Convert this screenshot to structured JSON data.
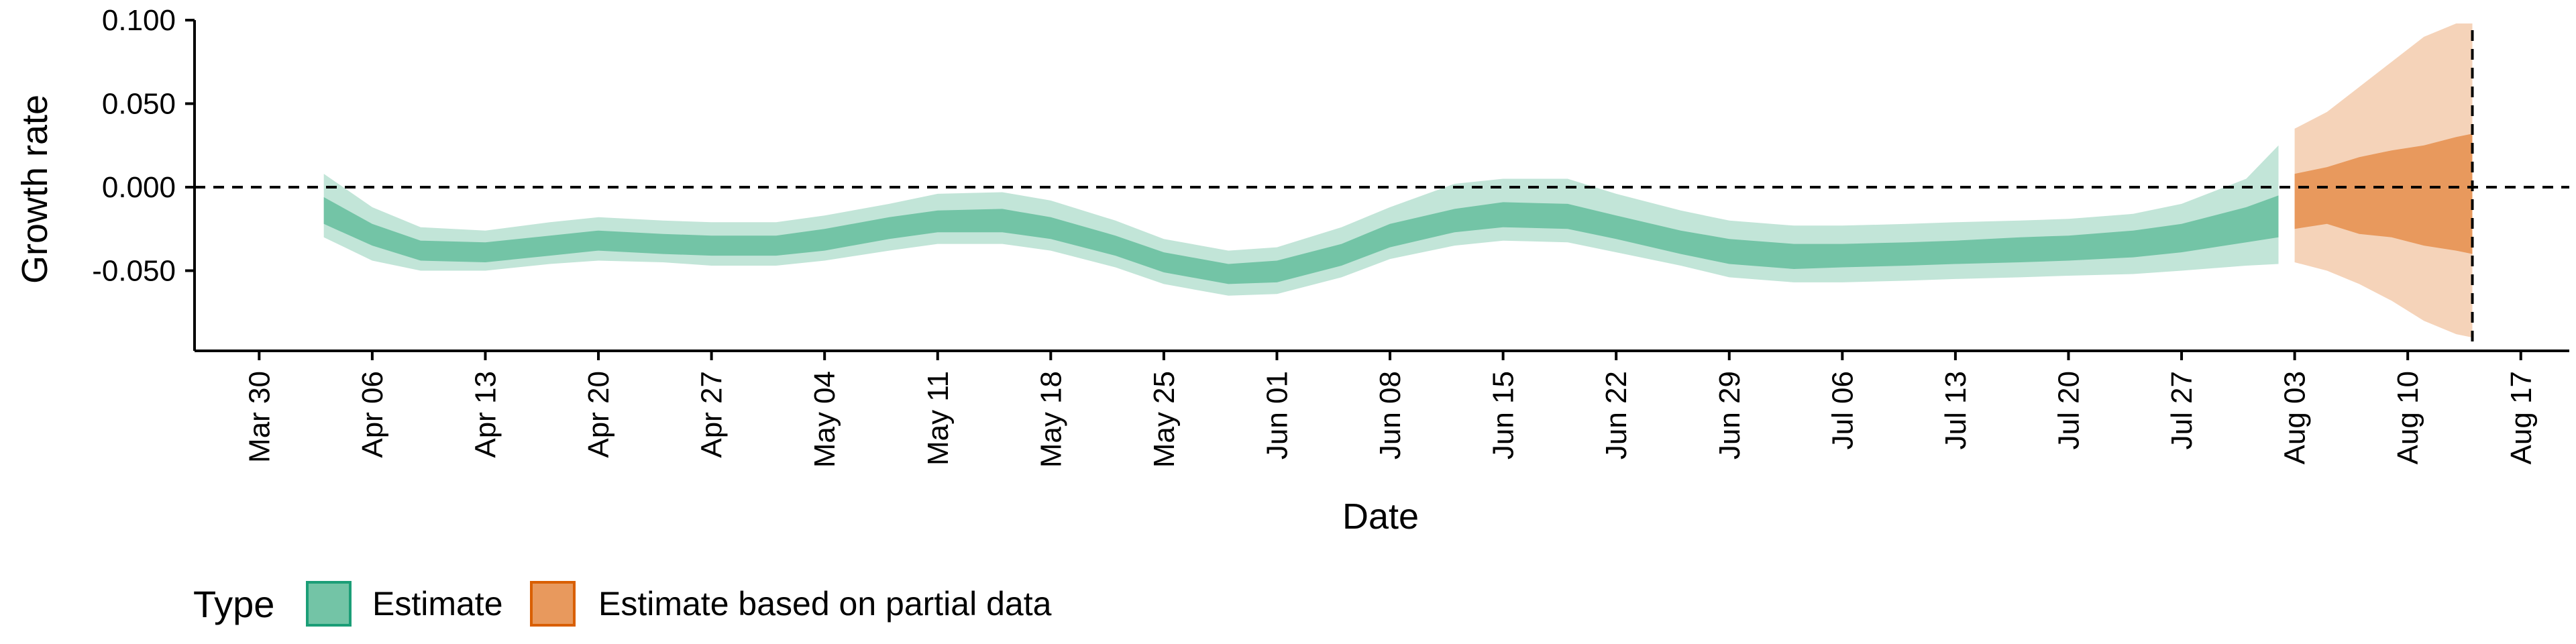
{
  "chart_data": {
    "type": "area",
    "xlabel": "Date",
    "ylabel": "Growth rate",
    "x_tick_labels": [
      "Mar 30",
      "Apr 06",
      "Apr 13",
      "Apr 20",
      "Apr 27",
      "May 04",
      "May 11",
      "May 18",
      "May 25",
      "Jun 01",
      "Jun 08",
      "Jun 15",
      "Jun 22",
      "Jun 29",
      "Jul 06",
      "Jul 13",
      "Jul 20",
      "Jul 27",
      "Aug 03",
      "Aug 10",
      "Aug 17"
    ],
    "x_ticks": [
      "2020-03-30",
      "2020-04-06",
      "2020-04-13",
      "2020-04-20",
      "2020-04-27",
      "2020-05-04",
      "2020-05-11",
      "2020-05-18",
      "2020-05-25",
      "2020-06-01",
      "2020-06-08",
      "2020-06-15",
      "2020-06-22",
      "2020-06-29",
      "2020-07-06",
      "2020-07-13",
      "2020-07-20",
      "2020-07-27",
      "2020-08-03",
      "2020-08-10",
      "2020-08-17"
    ],
    "xlim": [
      "2020-03-26",
      "2020-08-20"
    ],
    "ylim": [
      -0.098,
      0.1
    ],
    "y_ticks": [
      0.1,
      0.05,
      0.0,
      -0.05
    ],
    "y_tick_labels": [
      "0.100",
      "0.050",
      "0.000",
      "-0.050"
    ],
    "hline_y": 0,
    "vline_date": "2020-08-14",
    "legend": {
      "title": "Type",
      "position": "bottom-left",
      "entries": [
        {
          "label": "Estimate",
          "fill": "#73c4a6",
          "border": "#1b9e77"
        },
        {
          "label": "Estimate based on partial data",
          "fill": "#e8995d",
          "border": "#d95f02"
        }
      ]
    },
    "series": [
      {
        "name": "Estimate",
        "color_outer": "#c2e5d8",
        "color_inner": "#73c4a6",
        "points": [
          {
            "date": "2020-04-03",
            "lo90": -0.03,
            "lo50": -0.022,
            "hi50": -0.006,
            "hi90": 0.008
          },
          {
            "date": "2020-04-06",
            "lo90": -0.044,
            "lo50": -0.035,
            "hi50": -0.022,
            "hi90": -0.012
          },
          {
            "date": "2020-04-09",
            "lo90": -0.05,
            "lo50": -0.044,
            "hi50": -0.032,
            "hi90": -0.024
          },
          {
            "date": "2020-04-13",
            "lo90": -0.05,
            "lo50": -0.045,
            "hi50": -0.033,
            "hi90": -0.026
          },
          {
            "date": "2020-04-17",
            "lo90": -0.046,
            "lo50": -0.041,
            "hi50": -0.029,
            "hi90": -0.021
          },
          {
            "date": "2020-04-20",
            "lo90": -0.044,
            "lo50": -0.038,
            "hi50": -0.026,
            "hi90": -0.018
          },
          {
            "date": "2020-04-24",
            "lo90": -0.045,
            "lo50": -0.04,
            "hi50": -0.028,
            "hi90": -0.02
          },
          {
            "date": "2020-04-27",
            "lo90": -0.047,
            "lo50": -0.041,
            "hi50": -0.029,
            "hi90": -0.021
          },
          {
            "date": "2020-05-01",
            "lo90": -0.047,
            "lo50": -0.041,
            "hi50": -0.029,
            "hi90": -0.021
          },
          {
            "date": "2020-05-04",
            "lo90": -0.044,
            "lo50": -0.038,
            "hi50": -0.025,
            "hi90": -0.017
          },
          {
            "date": "2020-05-08",
            "lo90": -0.038,
            "lo50": -0.031,
            "hi50": -0.018,
            "hi90": -0.01
          },
          {
            "date": "2020-05-11",
            "lo90": -0.034,
            "lo50": -0.027,
            "hi50": -0.014,
            "hi90": -0.004
          },
          {
            "date": "2020-05-15",
            "lo90": -0.034,
            "lo50": -0.027,
            "hi50": -0.013,
            "hi90": -0.003
          },
          {
            "date": "2020-05-18",
            "lo90": -0.038,
            "lo50": -0.031,
            "hi50": -0.018,
            "hi90": -0.008
          },
          {
            "date": "2020-05-22",
            "lo90": -0.048,
            "lo50": -0.041,
            "hi50": -0.029,
            "hi90": -0.02
          },
          {
            "date": "2020-05-25",
            "lo90": -0.058,
            "lo50": -0.051,
            "hi50": -0.039,
            "hi90": -0.031
          },
          {
            "date": "2020-05-29",
            "lo90": -0.065,
            "lo50": -0.058,
            "hi50": -0.046,
            "hi90": -0.038
          },
          {
            "date": "2020-06-01",
            "lo90": -0.064,
            "lo50": -0.057,
            "hi50": -0.044,
            "hi90": -0.036
          },
          {
            "date": "2020-06-05",
            "lo90": -0.054,
            "lo50": -0.047,
            "hi50": -0.034,
            "hi90": -0.024
          },
          {
            "date": "2020-06-08",
            "lo90": -0.043,
            "lo50": -0.036,
            "hi50": -0.022,
            "hi90": -0.012
          },
          {
            "date": "2020-06-12",
            "lo90": -0.035,
            "lo50": -0.027,
            "hi50": -0.013,
            "hi90": 0.002
          },
          {
            "date": "2020-06-15",
            "lo90": -0.032,
            "lo50": -0.024,
            "hi50": -0.009,
            "hi90": 0.005
          },
          {
            "date": "2020-06-19",
            "lo90": -0.033,
            "lo50": -0.025,
            "hi50": -0.01,
            "hi90": 0.005
          },
          {
            "date": "2020-06-22",
            "lo90": -0.039,
            "lo50": -0.031,
            "hi50": -0.017,
            "hi90": -0.004
          },
          {
            "date": "2020-06-26",
            "lo90": -0.047,
            "lo50": -0.04,
            "hi50": -0.026,
            "hi90": -0.014
          },
          {
            "date": "2020-06-29",
            "lo90": -0.054,
            "lo50": -0.046,
            "hi50": -0.031,
            "hi90": -0.02
          },
          {
            "date": "2020-07-03",
            "lo90": -0.057,
            "lo50": -0.049,
            "hi50": -0.034,
            "hi90": -0.023
          },
          {
            "date": "2020-07-06",
            "lo90": -0.057,
            "lo50": -0.048,
            "hi50": -0.034,
            "hi90": -0.023
          },
          {
            "date": "2020-07-10",
            "lo90": -0.056,
            "lo50": -0.047,
            "hi50": -0.033,
            "hi90": -0.022
          },
          {
            "date": "2020-07-13",
            "lo90": -0.055,
            "lo50": -0.046,
            "hi50": -0.032,
            "hi90": -0.021
          },
          {
            "date": "2020-07-17",
            "lo90": -0.054,
            "lo50": -0.045,
            "hi50": -0.03,
            "hi90": -0.02
          },
          {
            "date": "2020-07-20",
            "lo90": -0.053,
            "lo50": -0.044,
            "hi50": -0.029,
            "hi90": -0.019
          },
          {
            "date": "2020-07-24",
            "lo90": -0.052,
            "lo50": -0.042,
            "hi50": -0.026,
            "hi90": -0.016
          },
          {
            "date": "2020-07-27",
            "lo90": -0.05,
            "lo50": -0.039,
            "hi50": -0.022,
            "hi90": -0.01
          },
          {
            "date": "2020-07-31",
            "lo90": -0.047,
            "lo50": -0.033,
            "hi50": -0.012,
            "hi90": 0.005
          },
          {
            "date": "2020-08-02",
            "lo90": -0.046,
            "lo50": -0.03,
            "hi50": -0.005,
            "hi90": 0.025
          }
        ]
      },
      {
        "name": "Estimate based on partial data",
        "color_outer": "#f5d3b9",
        "color_inner": "#e8995d",
        "points": [
          {
            "date": "2020-08-03",
            "lo90": -0.045,
            "lo50": -0.025,
            "hi50": 0.008,
            "hi90": 0.035
          },
          {
            "date": "2020-08-05",
            "lo90": -0.05,
            "lo50": -0.022,
            "hi50": 0.012,
            "hi90": 0.045
          },
          {
            "date": "2020-08-07",
            "lo90": -0.058,
            "lo50": -0.028,
            "hi50": 0.018,
            "hi90": 0.06
          },
          {
            "date": "2020-08-09",
            "lo90": -0.068,
            "lo50": -0.03,
            "hi50": 0.022,
            "hi90": 0.075
          },
          {
            "date": "2020-08-11",
            "lo90": -0.08,
            "lo50": -0.035,
            "hi50": 0.025,
            "hi90": 0.09
          },
          {
            "date": "2020-08-13",
            "lo90": -0.088,
            "lo50": -0.038,
            "hi50": 0.03,
            "hi90": 0.098
          },
          {
            "date": "2020-08-14",
            "lo90": -0.09,
            "lo50": -0.04,
            "hi50": 0.032,
            "hi90": 0.098
          }
        ]
      }
    ]
  }
}
